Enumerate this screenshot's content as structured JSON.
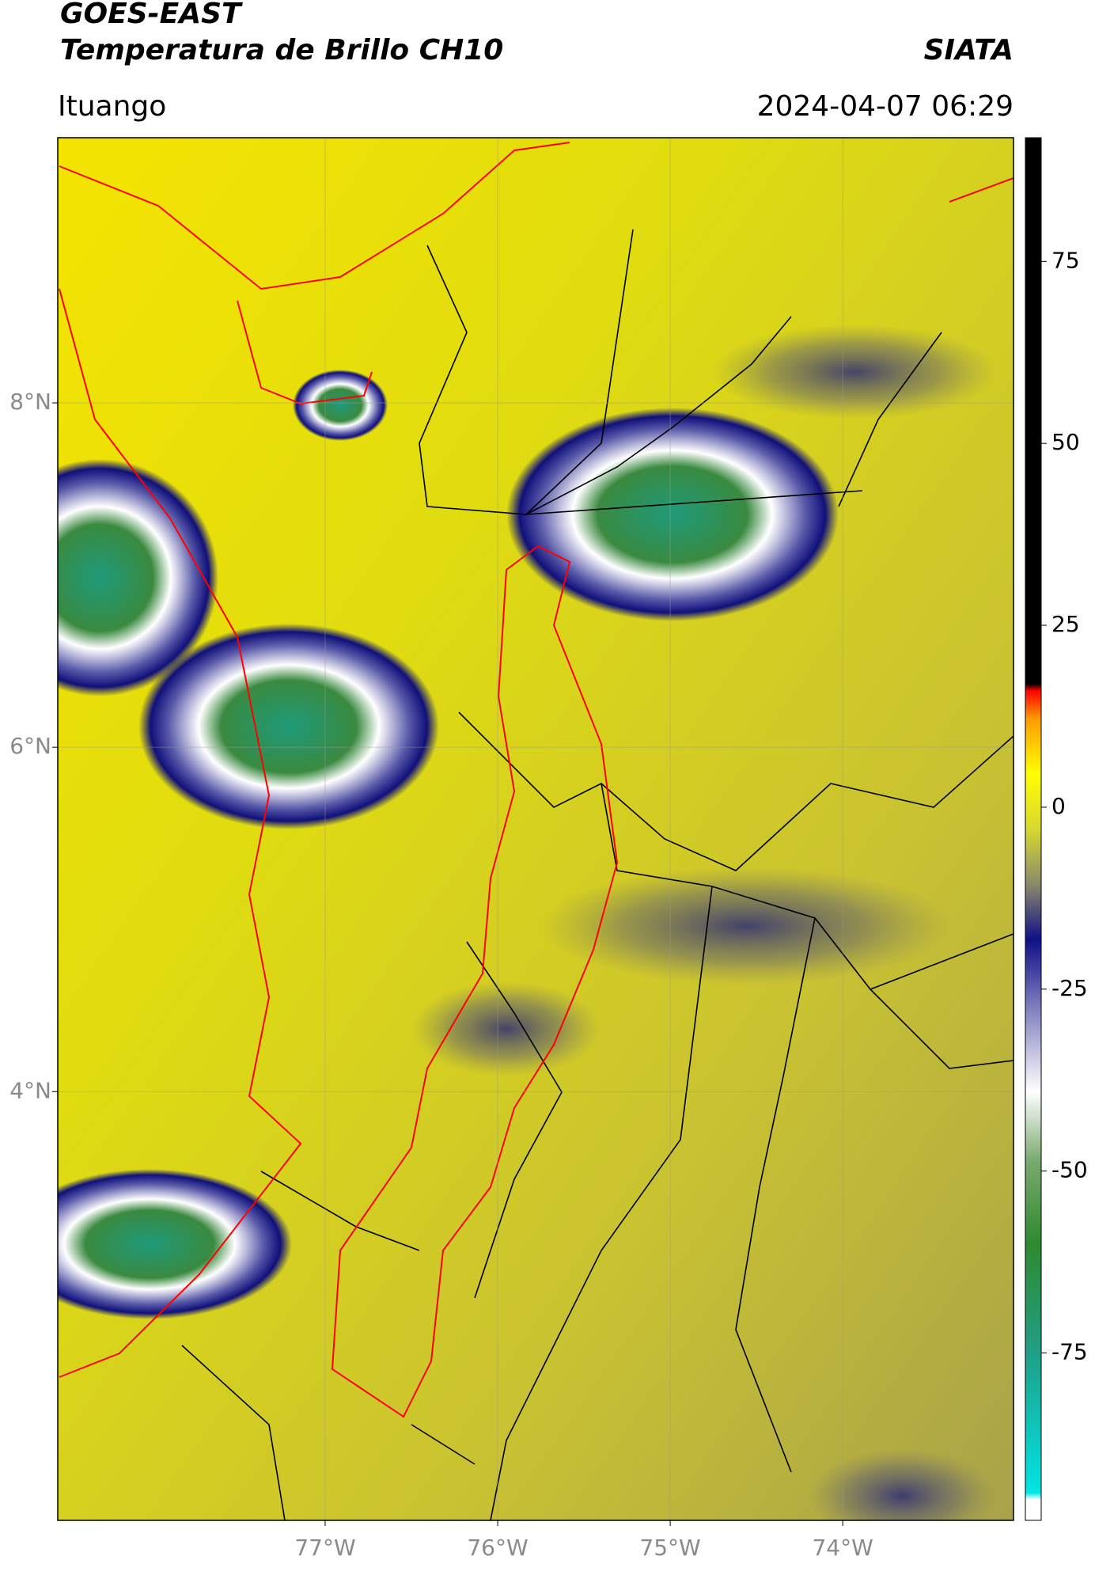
{
  "header": {
    "title": "GOES-EAST",
    "subtitle": "Temperatura de Brillo CH10",
    "source": "SIATA",
    "location": "Ituango",
    "datetime": "2024-04-07 06:29"
  },
  "map": {
    "lonlim": [
      -78.55,
      -73.01
    ],
    "latlim": [
      1.51,
      9.54
    ],
    "lonticks": [
      {
        "value": -77,
        "label": "77°W"
      },
      {
        "value": -76,
        "label": "76°W"
      },
      {
        "value": -75,
        "label": "75°W"
      },
      {
        "value": -74,
        "label": "74°W"
      }
    ],
    "latticks": [
      {
        "value": 8,
        "label": "8°N"
      },
      {
        "value": 6,
        "label": "6°N"
      },
      {
        "value": 4,
        "label": "4°N"
      }
    ],
    "grid": true
  },
  "colorbar": {
    "clim": [
      -98,
      92
    ],
    "ticks": [
      75,
      50,
      25,
      0,
      -25,
      -50,
      -75
    ]
  }
}
